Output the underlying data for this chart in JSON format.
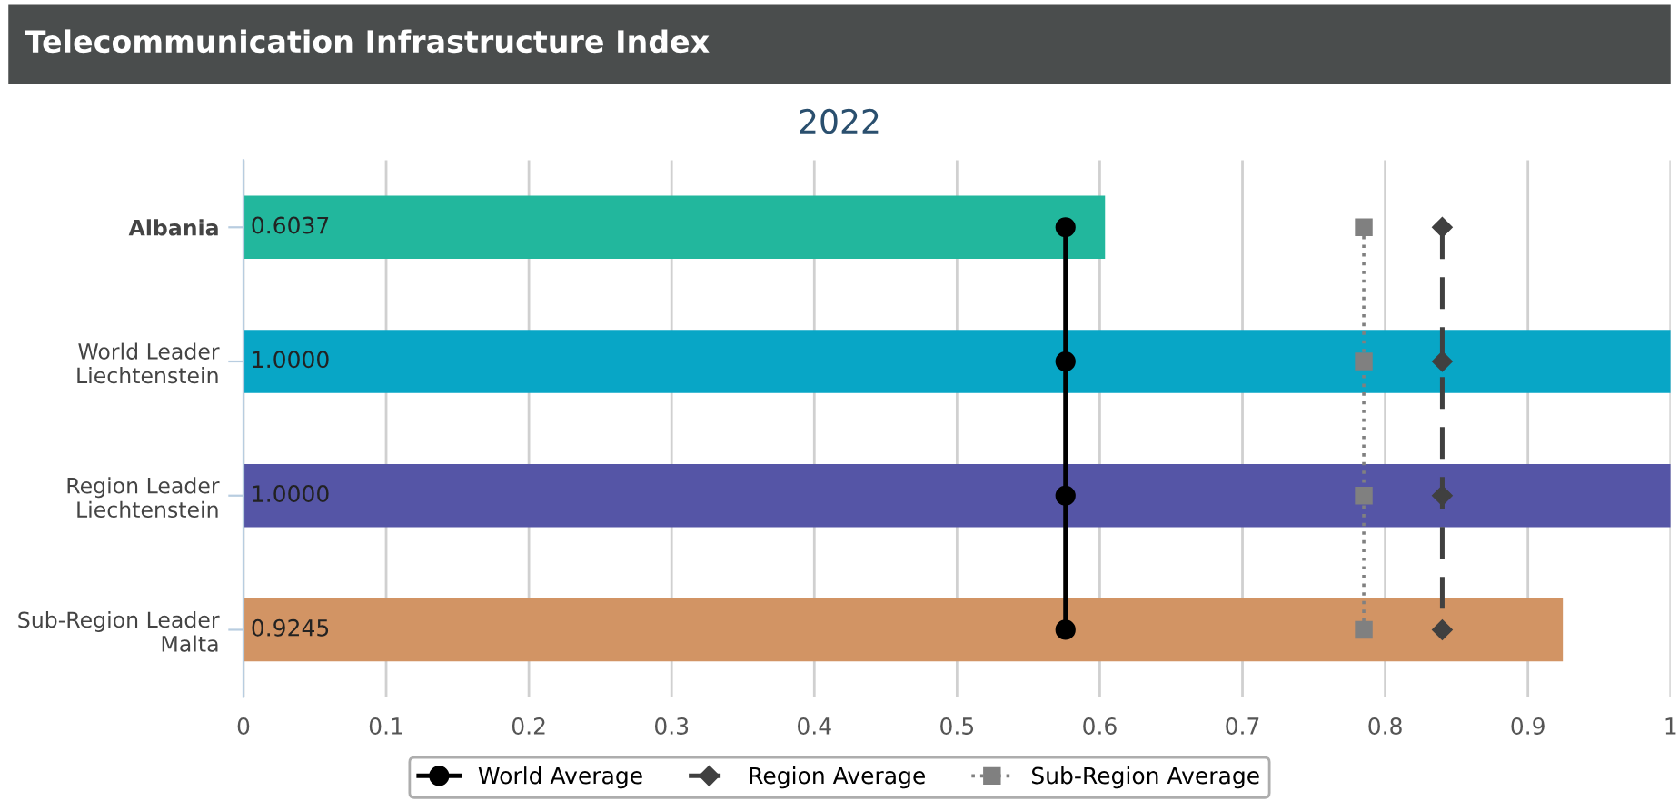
{
  "chart_data": {
    "type": "bar",
    "orientation": "horizontal",
    "title": "Telecommunication Infrastructure Index",
    "subtitle": "2022",
    "categories": [
      "Albania",
      "World Leader\nLiechtenstein",
      "Region Leader\nLiechtenstein",
      "Sub-Region Leader\nMalta"
    ],
    "series": [
      {
        "colors": [
          "#22b79d",
          "#08a6c6",
          "#5555a6",
          "#d29464"
        ],
        "values": [
          0.6037,
          1.0,
          1.0,
          0.9245
        ],
        "value_labels": [
          "0.6037",
          "1.0000",
          "1.0000",
          "0.9245"
        ]
      },
      {
        "type": "line",
        "name": "World Average",
        "color": "#000000",
        "marker": "circle",
        "line_style": "solid",
        "values": [
          0.576,
          0.576,
          0.576,
          0.576
        ]
      },
      {
        "type": "line",
        "name": "Region Average",
        "color": "#404040",
        "marker": "diamond",
        "line_style": "dashed",
        "values": [
          0.84,
          0.84,
          0.84,
          0.84
        ]
      },
      {
        "type": "line",
        "name": "Sub-Region Average",
        "color": "#808080",
        "marker": "square",
        "line_style": "dotted",
        "values": [
          0.785,
          0.785,
          0.785,
          0.785
        ]
      }
    ],
    "xlim": [
      0,
      1
    ],
    "xticks": [
      0,
      0.1,
      0.2,
      0.3,
      0.4,
      0.5,
      0.6,
      0.7,
      0.8,
      0.9,
      1
    ],
    "grid": "x",
    "legend": "bottom"
  }
}
